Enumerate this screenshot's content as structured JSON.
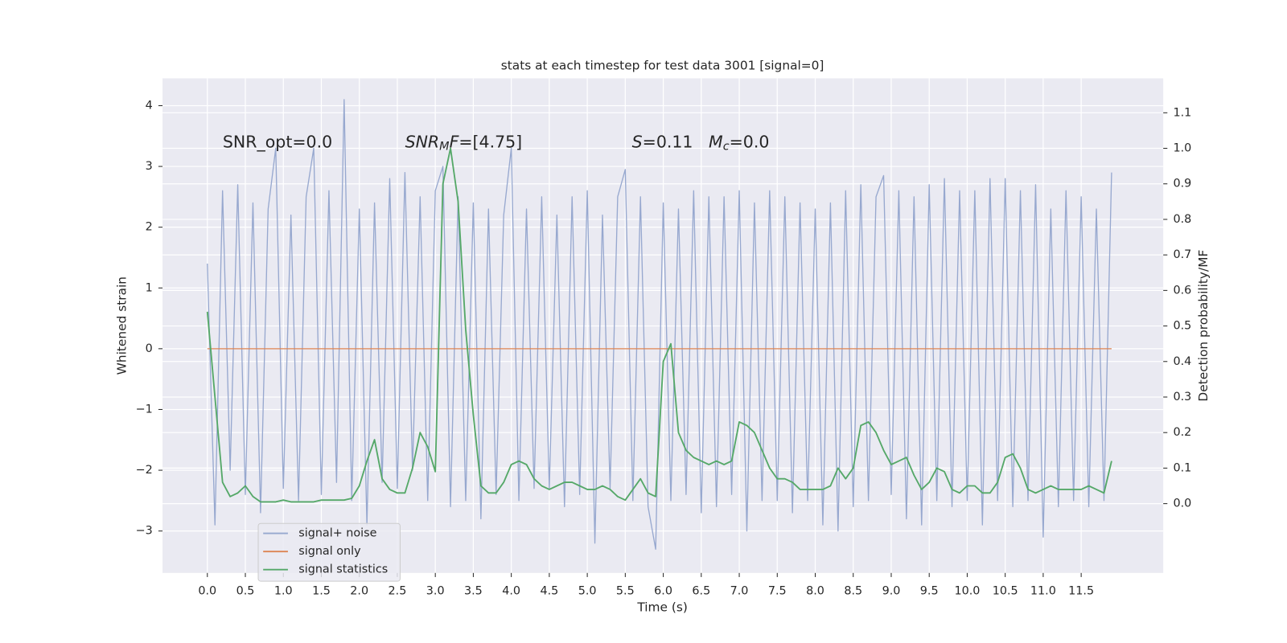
{
  "chart_data": {
    "type": "line",
    "title": "stats at each timestep for test data 3001 [signal=0]",
    "xlabel": "Time (s)",
    "ylabel": "Whitened strain",
    "y2label": "Detection probability/MF",
    "grid": true,
    "legend": "lower left",
    "xlim": [
      -0.59,
      12.58
    ],
    "ylim": [
      -3.69,
      4.45
    ],
    "y2lim": [
      -0.195,
      1.197
    ],
    "xticks": [
      {
        "value": 0,
        "label": "0.0"
      },
      0.5,
      {
        "value": 1,
        "label": "1.0"
      },
      1.5,
      {
        "value": 2,
        "label": "2.0"
      },
      2.5,
      {
        "value": 3,
        "label": "3.0"
      },
      3.5,
      {
        "value": 4,
        "label": "4.0"
      },
      4.5,
      {
        "value": 5,
        "label": "5.0"
      },
      5.5,
      {
        "value": 6,
        "label": "6.0"
      },
      6.5,
      {
        "value": 7,
        "label": "7.0"
      },
      7.5,
      {
        "value": 8,
        "label": "8.0"
      },
      8.5,
      {
        "value": 9,
        "label": "9.0"
      },
      9.5,
      {
        "value": 10,
        "label": "10.0"
      },
      10.5,
      {
        "value": 11,
        "label": "11.0"
      },
      11.5
    ],
    "yticks": [
      {
        "value": -3,
        "label": "−3"
      },
      {
        "value": -2,
        "label": "−2"
      },
      {
        "value": -1,
        "label": "−1"
      },
      0,
      1,
      2,
      3,
      4
    ],
    "y2ticks": [
      {
        "value": 0,
        "label": "0.0"
      },
      0.1,
      0.2,
      0.3,
      0.4,
      0.5,
      0.6,
      0.7,
      0.8,
      0.9,
      {
        "value": 1,
        "label": "1.0"
      },
      1.1
    ],
    "annotations": [
      [
        {
          "text": "SNR_opt=0.0"
        }
      ],
      [
        {
          "text": "SNR",
          "italic": true
        },
        {
          "text": "M",
          "italic": true,
          "sub": true
        },
        {
          "text": "F",
          "italic": true
        },
        {
          "text": "=[4.75]"
        }
      ],
      [
        {
          "text": "S",
          "italic": true
        },
        {
          "text": "=0.11   "
        },
        {
          "text": "M",
          "italic": true
        },
        {
          "text": "c",
          "italic": true,
          "sub": true
        },
        {
          "text": "=0.0"
        }
      ]
    ],
    "x": [
      0.0,
      0.1,
      0.2,
      0.3,
      0.4,
      0.5,
      0.6,
      0.7,
      0.8,
      0.9,
      1.0,
      1.1,
      1.2,
      1.3,
      1.4,
      1.5,
      1.6,
      1.7,
      1.8,
      1.9,
      2.0,
      2.1,
      2.2,
      2.3,
      2.4,
      2.5,
      2.6,
      2.7,
      2.8,
      2.9,
      3.0,
      3.1,
      3.2,
      3.3,
      3.4,
      3.5,
      3.6,
      3.7,
      3.8,
      3.9,
      4.0,
      4.1,
      4.2,
      4.3,
      4.4,
      4.5,
      4.6,
      4.7,
      4.8,
      4.9,
      5.0,
      5.1,
      5.2,
      5.3,
      5.4,
      5.5,
      5.6,
      5.7,
      5.8,
      5.9,
      6.0,
      6.1,
      6.2,
      6.3,
      6.4,
      6.5,
      6.6,
      6.7,
      6.8,
      6.9,
      7.0,
      7.1,
      7.2,
      7.3,
      7.4,
      7.5,
      7.6,
      7.7,
      7.8,
      7.9,
      8.0,
      8.1,
      8.2,
      8.3,
      8.4,
      8.5,
      8.6,
      8.7,
      8.8,
      8.9,
      9.0,
      9.1,
      9.2,
      9.3,
      9.4,
      9.5,
      9.6,
      9.7,
      9.8,
      9.9,
      10.0,
      10.1,
      10.2,
      10.3,
      10.4,
      10.5,
      10.6,
      10.7,
      10.8,
      10.9,
      11.0,
      11.1,
      11.2,
      11.3,
      11.4,
      11.5,
      11.6,
      11.7,
      11.8,
      11.9
    ],
    "series": [
      {
        "name": "signal+ noise",
        "color": "#97a8cf",
        "axis": "y",
        "values": [
          1.4,
          -2.9,
          2.6,
          -2.0,
          2.7,
          -2.4,
          2.4,
          -2.7,
          2.3,
          3.3,
          -2.3,
          2.2,
          -2.5,
          2.5,
          3.3,
          -2.4,
          2.6,
          -2.2,
          4.1,
          -2.5,
          2.3,
          -2.9,
          2.4,
          -2.2,
          2.8,
          -2.3,
          2.9,
          -2.0,
          2.5,
          -2.5,
          2.6,
          3.0,
          -2.6,
          2.5,
          -2.5,
          2.4,
          -2.8,
          2.3,
          -2.4,
          2.2,
          3.3,
          -2.5,
          2.3,
          -2.3,
          2.5,
          -2.3,
          2.2,
          -2.6,
          2.5,
          -2.4,
          2.6,
          -3.2,
          2.2,
          -2.3,
          2.5,
          2.95,
          -2.5,
          2.5,
          -2.6,
          -3.3,
          2.4,
          -2.5,
          2.3,
          -2.4,
          2.6,
          -2.7,
          2.5,
          -2.6,
          2.5,
          -2.4,
          2.6,
          -3.0,
          2.4,
          -2.5,
          2.6,
          -2.5,
          2.5,
          -2.7,
          2.4,
          -2.5,
          2.3,
          -2.9,
          2.4,
          -3.0,
          2.6,
          -2.6,
          2.7,
          -2.5,
          2.5,
          2.85,
          -2.4,
          2.6,
          -2.8,
          2.5,
          -2.9,
          2.7,
          -2.5,
          2.8,
          -2.6,
          2.6,
          -2.5,
          2.6,
          -2.9,
          2.8,
          -2.5,
          2.8,
          -2.6,
          2.6,
          -2.5,
          2.7,
          -3.1,
          2.3,
          -2.6,
          2.6,
          -2.5,
          2.5,
          -2.6,
          2.3,
          -2.5,
          2.9
        ]
      },
      {
        "name": "signal only",
        "color": "#dd8452",
        "axis": "y",
        "values": [
          0,
          0,
          0,
          0,
          0,
          0,
          0,
          0,
          0,
          0,
          0,
          0,
          0,
          0,
          0,
          0,
          0,
          0,
          0,
          0,
          0,
          0,
          0,
          0,
          0,
          0,
          0,
          0,
          0,
          0,
          0,
          0,
          0,
          0,
          0,
          0,
          0,
          0,
          0,
          0,
          0,
          0,
          0,
          0,
          0,
          0,
          0,
          0,
          0,
          0,
          0,
          0,
          0,
          0,
          0,
          0,
          0,
          0,
          0,
          0,
          0,
          0,
          0,
          0,
          0,
          0,
          0,
          0,
          0,
          0,
          0,
          0,
          0,
          0,
          0,
          0,
          0,
          0,
          0,
          0,
          0,
          0,
          0,
          0,
          0,
          0,
          0,
          0,
          0,
          0,
          0,
          0,
          0,
          0,
          0,
          0,
          0,
          0,
          0,
          0,
          0,
          0,
          0,
          0,
          0,
          0,
          0,
          0,
          0,
          0,
          0,
          0,
          0,
          0,
          0,
          0,
          0,
          0,
          0,
          0
        ]
      },
      {
        "name": "signal statistics",
        "color": "#55a868",
        "axis": "y2",
        "values": [
          0.54,
          0.3,
          0.06,
          0.02,
          0.03,
          0.05,
          0.02,
          0.005,
          0.005,
          0.005,
          0.01,
          0.005,
          0.005,
          0.005,
          0.005,
          0.01,
          0.01,
          0.01,
          0.01,
          0.015,
          0.05,
          0.12,
          0.18,
          0.07,
          0.04,
          0.03,
          0.03,
          0.1,
          0.2,
          0.16,
          0.09,
          0.9,
          1.0,
          0.85,
          0.49,
          0.25,
          0.05,
          0.03,
          0.03,
          0.06,
          0.11,
          0.12,
          0.11,
          0.07,
          0.05,
          0.04,
          0.05,
          0.06,
          0.06,
          0.05,
          0.04,
          0.04,
          0.05,
          0.04,
          0.02,
          0.01,
          0.04,
          0.07,
          0.03,
          0.02,
          0.4,
          0.45,
          0.2,
          0.15,
          0.13,
          0.12,
          0.11,
          0.12,
          0.11,
          0.12,
          0.23,
          0.22,
          0.2,
          0.15,
          0.1,
          0.07,
          0.07,
          0.06,
          0.04,
          0.04,
          0.04,
          0.04,
          0.05,
          0.1,
          0.07,
          0.1,
          0.22,
          0.23,
          0.2,
          0.15,
          0.11,
          0.12,
          0.13,
          0.08,
          0.04,
          0.06,
          0.1,
          0.09,
          0.04,
          0.03,
          0.05,
          0.05,
          0.03,
          0.03,
          0.06,
          0.13,
          0.14,
          0.1,
          0.04,
          0.03,
          0.04,
          0.05,
          0.04,
          0.04,
          0.04,
          0.04,
          0.05,
          0.04,
          0.03,
          0.12
        ]
      }
    ]
  }
}
